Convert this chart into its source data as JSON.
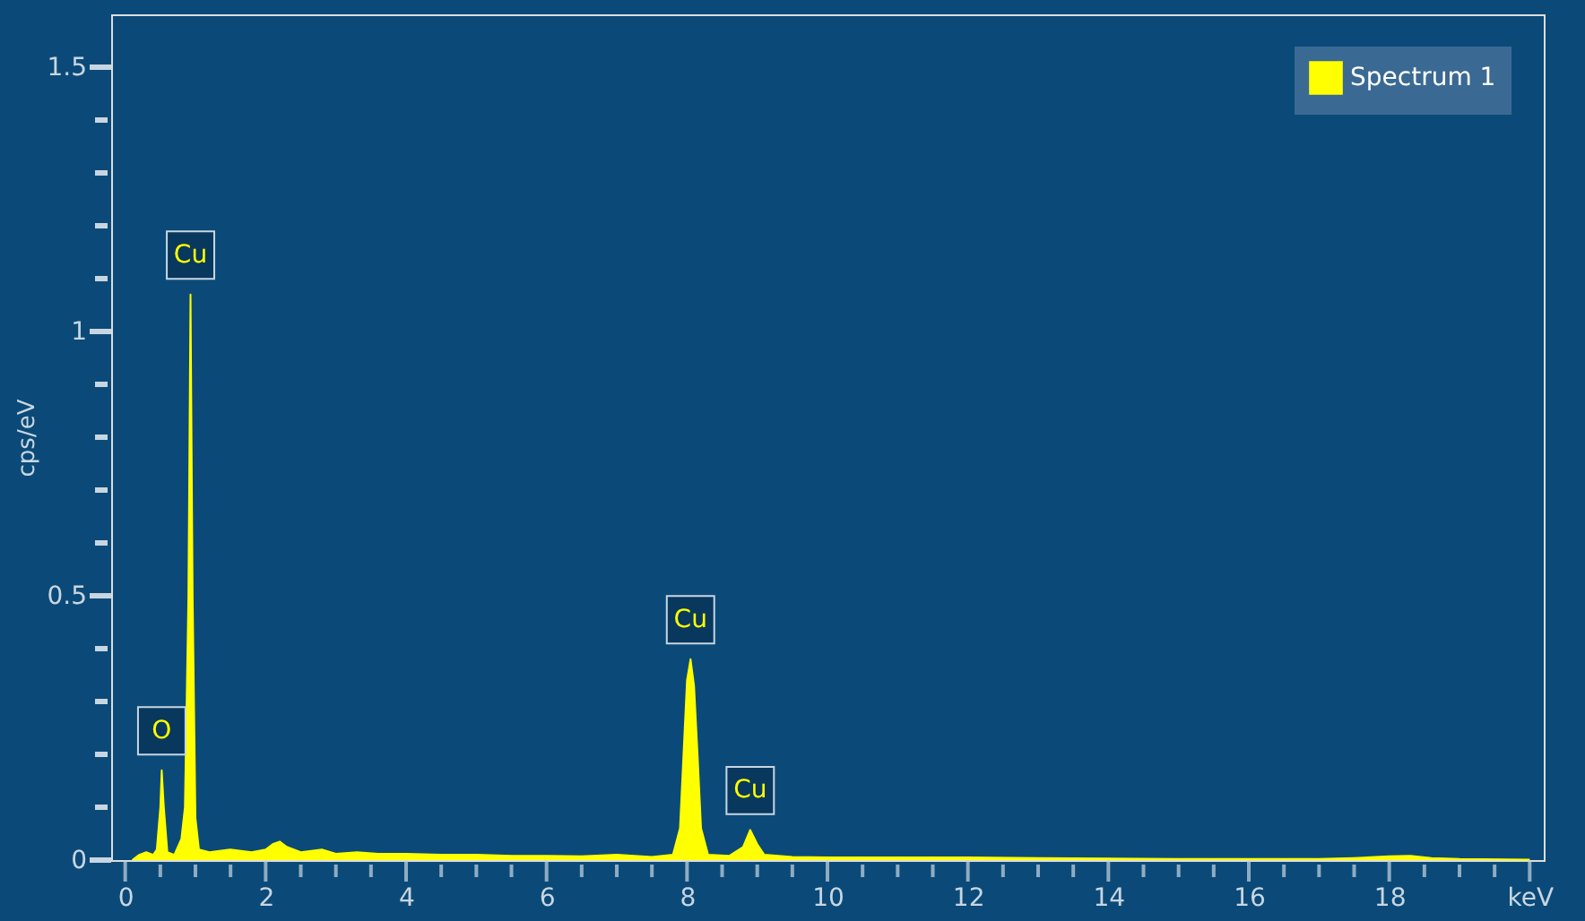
{
  "chart_data": {
    "type": "area",
    "ylabel": "cps/eV",
    "xlim": [
      -0.2,
      20.2
    ],
    "ylim": [
      0,
      1.6
    ],
    "xticks": [
      0,
      {
        "value": 0.5,
        "label": null
      },
      {
        "value": 1,
        "label": null
      },
      {
        "value": 1.5,
        "label": null
      },
      2,
      {
        "value": 2.5,
        "label": null
      },
      {
        "value": 3,
        "label": null
      },
      {
        "value": 3.5,
        "label": null
      },
      4,
      {
        "value": 4.5,
        "label": null
      },
      {
        "value": 5,
        "label": null
      },
      {
        "value": 5.5,
        "label": null
      },
      6,
      {
        "value": 6.5,
        "label": null
      },
      {
        "value": 7,
        "label": null
      },
      {
        "value": 7.5,
        "label": null
      },
      8,
      {
        "value": 8.5,
        "label": null
      },
      {
        "value": 9,
        "label": null
      },
      {
        "value": 9.5,
        "label": null
      },
      10,
      {
        "value": 10.5,
        "label": null
      },
      {
        "value": 11,
        "label": null
      },
      {
        "value": 11.5,
        "label": null
      },
      12,
      {
        "value": 12.5,
        "label": null
      },
      {
        "value": 13,
        "label": null
      },
      {
        "value": 13.5,
        "label": null
      },
      14,
      {
        "value": 14.5,
        "label": null
      },
      {
        "value": 15,
        "label": null
      },
      {
        "value": 15.5,
        "label": null
      },
      16,
      {
        "value": 16.5,
        "label": null
      },
      {
        "value": 17,
        "label": null
      },
      {
        "value": 17.5,
        "label": null
      },
      18,
      {
        "value": 18.5,
        "label": null
      },
      {
        "value": 19,
        "label": null
      },
      {
        "value": 19.5,
        "label": null
      },
      {
        "value": 20,
        "label": "keV"
      }
    ],
    "yticks": [
      0,
      {
        "value": 0.1,
        "label": null
      },
      {
        "value": 0.2,
        "label": null
      },
      {
        "value": 0.3,
        "label": null
      },
      {
        "value": 0.4,
        "label": null
      },
      0.5,
      {
        "value": 0.6,
        "label": null
      },
      {
        "value": 0.7,
        "label": null
      },
      {
        "value": 0.8,
        "label": null
      },
      {
        "value": 0.9,
        "label": null
      },
      1,
      {
        "value": 1.1,
        "label": null
      },
      {
        "value": 1.2,
        "label": null
      },
      {
        "value": 1.3,
        "label": null
      },
      {
        "value": 1.4,
        "label": null
      },
      1.5
    ],
    "grid": false,
    "legend": "top right",
    "series": [
      {
        "name": "Spectrum 1",
        "color": "#ffff00",
        "x": [
          0.1,
          0.2,
          0.3,
          0.4,
          0.45,
          0.5,
          0.52,
          0.55,
          0.6,
          0.7,
          0.8,
          0.85,
          0.9,
          0.93,
          0.96,
          1.0,
          1.05,
          1.2,
          1.5,
          1.8,
          2.0,
          2.1,
          2.2,
          2.3,
          2.5,
          2.8,
          3.0,
          3.3,
          3.6,
          4.0,
          4.5,
          5.0,
          5.5,
          6.0,
          6.5,
          7.0,
          7.5,
          7.8,
          7.9,
          7.95,
          8.0,
          8.05,
          8.1,
          8.15,
          8.2,
          8.3,
          8.6,
          8.8,
          8.9,
          9.0,
          9.1,
          9.5,
          10,
          11,
          12,
          13,
          14,
          15,
          16,
          17,
          17.5,
          18,
          18.3,
          18.6,
          19,
          20
        ],
        "values": [
          0,
          0.01,
          0.015,
          0.01,
          0.02,
          0.1,
          0.17,
          0.1,
          0.015,
          0.01,
          0.04,
          0.1,
          0.5,
          1.07,
          0.5,
          0.08,
          0.02,
          0.015,
          0.02,
          0.015,
          0.02,
          0.03,
          0.035,
          0.025,
          0.015,
          0.02,
          0.012,
          0.015,
          0.012,
          0.012,
          0.01,
          0.01,
          0.008,
          0.008,
          0.007,
          0.01,
          0.006,
          0.01,
          0.06,
          0.2,
          0.34,
          0.38,
          0.33,
          0.2,
          0.06,
          0.01,
          0.008,
          0.025,
          0.057,
          0.03,
          0.01,
          0.006,
          0.005,
          0.005,
          0.005,
          0.004,
          0.003,
          0.002,
          0.002,
          0.002,
          0.004,
          0.007,
          0.008,
          0.004,
          0.002,
          0.001
        ]
      }
    ],
    "annotations": [
      {
        "text": "O",
        "x": 0.52,
        "y": 0.17
      },
      {
        "text": "Cu",
        "x": 0.93,
        "y": 1.07
      },
      {
        "text": "Cu",
        "x": 8.05,
        "y": 0.38
      },
      {
        "text": "Cu",
        "x": 8.9,
        "y": 0.057
      }
    ]
  }
}
